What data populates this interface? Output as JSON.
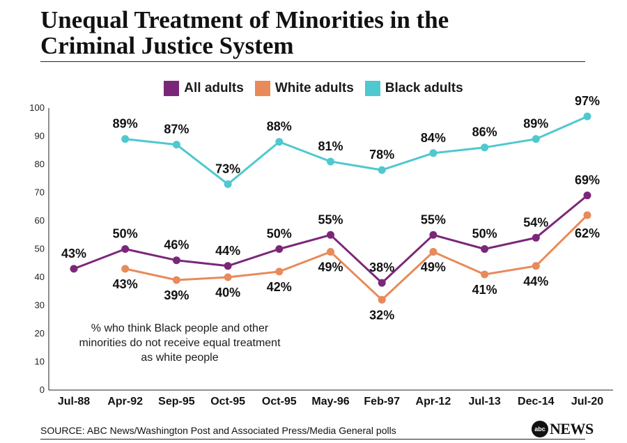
{
  "header": {
    "title_line1": "Unequal Treatment of Minorities in the",
    "title_line2": "Criminal Justice System"
  },
  "footer": {
    "source": "SOURCE: ABC News/Washington Post and Associated Press/Media General polls",
    "logo_mark": "abc",
    "logo_text": "NEWS"
  },
  "colors": {
    "all_adults": "#7b2779",
    "white_adults": "#e88a5a",
    "black_adults": "#4fc8cf",
    "axis": "#222222"
  },
  "chart_data": {
    "type": "line",
    "categories": [
      "Jul-88",
      "Apr-92",
      "Sep-95",
      "Oct-95",
      "Oct-95",
      "May-96",
      "Feb-97",
      "Apr-12",
      "Jul-13",
      "Dec-14",
      "Jul-20"
    ],
    "ylim": [
      0,
      100
    ],
    "yticks": [
      0,
      10,
      20,
      30,
      40,
      50,
      60,
      70,
      80,
      90,
      100
    ],
    "legend_position": "top-center",
    "annotation": [
      "% who think Black people and other",
      "minorities do not receive equal treatment",
      "as white people"
    ],
    "series": [
      {
        "key": "all_adults",
        "name": "All adults",
        "values": [
          43,
          50,
          46,
          44,
          50,
          55,
          38,
          55,
          50,
          54,
          69
        ]
      },
      {
        "key": "white_adults",
        "name": "White adults",
        "values": [
          null,
          43,
          39,
          40,
          42,
          49,
          32,
          49,
          41,
          44,
          62
        ]
      },
      {
        "key": "black_adults",
        "name": "Black adults",
        "values": [
          null,
          89,
          87,
          73,
          88,
          81,
          78,
          84,
          86,
          89,
          97
        ]
      }
    ]
  }
}
